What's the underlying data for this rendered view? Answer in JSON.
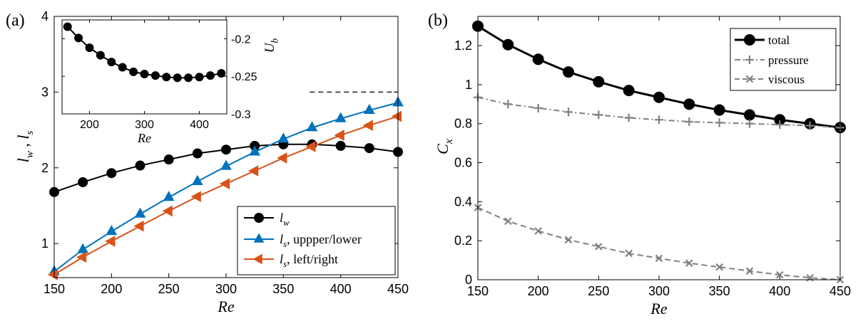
{
  "chart_data": [
    {
      "panel_label": "(a)",
      "type": "line",
      "xlabel": "Re",
      "ylabel": "l_w , l_s",
      "xlim": [
        150,
        450
      ],
      "ylim": [
        0.55,
        4
      ],
      "x_ticks": [
        150,
        200,
        250,
        300,
        350,
        400,
        450
      ],
      "y_ticks": [
        1,
        2,
        3,
        4
      ],
      "grid": false,
      "legend_position": "bottom-right",
      "reference_line": {
        "y": 3,
        "x_range": [
          373,
          450
        ],
        "style": "dashed"
      },
      "x": [
        150,
        175,
        200,
        225,
        250,
        275,
        300,
        325,
        350,
        375,
        400,
        425,
        450
      ],
      "series": [
        {
          "name": "l_w",
          "legend_text": "lw",
          "color": "#000000",
          "marker": "circle",
          "line": "solid",
          "values": [
            1.68,
            1.81,
            1.93,
            2.03,
            2.11,
            2.19,
            2.24,
            2.29,
            2.31,
            2.31,
            2.29,
            2.26,
            2.21
          ]
        },
        {
          "name": "l_s, uppper/lower",
          "legend_text": "ls, uppper/lower",
          "color": "#0072BD",
          "marker": "triangle-up",
          "line": "solid",
          "values": [
            0.63,
            0.92,
            1.16,
            1.39,
            1.61,
            1.82,
            2.02,
            2.21,
            2.38,
            2.53,
            2.65,
            2.76,
            2.86
          ]
        },
        {
          "name": "l_s, left/right",
          "legend_text": "ls, left/right",
          "color": "#D95319",
          "marker": "triangle-left",
          "line": "solid",
          "values": [
            0.59,
            0.82,
            1.03,
            1.23,
            1.43,
            1.62,
            1.79,
            1.96,
            2.13,
            2.28,
            2.43,
            2.56,
            2.68
          ]
        }
      ],
      "inset": {
        "type": "line",
        "xlabel": "Re",
        "ylabel": "U_b",
        "xlim": [
          150,
          450
        ],
        "ylim": [
          -0.3,
          -0.175
        ],
        "x_ticks": [
          200,
          300,
          400
        ],
        "y_ticks": [
          -0.2,
          -0.25,
          -0.3
        ],
        "y_tick_labels": [
          "-0.2",
          "-0.25",
          "-0.3"
        ],
        "x": [
          160,
          180,
          200,
          220,
          240,
          260,
          280,
          300,
          320,
          340,
          360,
          380,
          400,
          420,
          440
        ],
        "series": [
          {
            "name": "U_b",
            "color": "#000000",
            "marker": "circle",
            "values": [
              -0.184,
              -0.199,
              -0.212,
              -0.222,
              -0.231,
              -0.238,
              -0.244,
              -0.247,
              -0.249,
              -0.251,
              -0.252,
              -0.252,
              -0.251,
              -0.249,
              -0.246
            ]
          }
        ]
      }
    },
    {
      "panel_label": "(b)",
      "type": "line",
      "xlabel": "Re",
      "ylabel": "C_x",
      "xlim": [
        150,
        450
      ],
      "ylim": [
        0,
        1.35
      ],
      "x_ticks": [
        150,
        200,
        250,
        300,
        350,
        400,
        450
      ],
      "y_ticks": [
        0,
        0.2,
        0.4,
        0.6,
        0.8,
        1,
        1.2
      ],
      "grid": false,
      "legend_position": "top-right",
      "x": [
        150,
        175,
        200,
        225,
        250,
        275,
        300,
        325,
        350,
        375,
        400,
        425,
        450
      ],
      "series": [
        {
          "name": "total",
          "color": "#000000",
          "marker": "circle",
          "line": "solid",
          "values": [
            1.3,
            1.205,
            1.13,
            1.065,
            1.015,
            0.97,
            0.935,
            0.9,
            0.87,
            0.845,
            0.82,
            0.8,
            0.78
          ]
        },
        {
          "name": "pressure",
          "color": "#808080",
          "marker": "plus",
          "line": "dashdot",
          "values": [
            0.935,
            0.9,
            0.88,
            0.86,
            0.845,
            0.83,
            0.82,
            0.81,
            0.805,
            0.8,
            0.795,
            0.79,
            0.78
          ]
        },
        {
          "name": "viscous",
          "color": "#808080",
          "marker": "x",
          "line": "dashed",
          "values": [
            0.37,
            0.3,
            0.25,
            0.205,
            0.17,
            0.135,
            0.11,
            0.085,
            0.065,
            0.045,
            0.025,
            0.01,
            0.0
          ]
        }
      ]
    }
  ]
}
